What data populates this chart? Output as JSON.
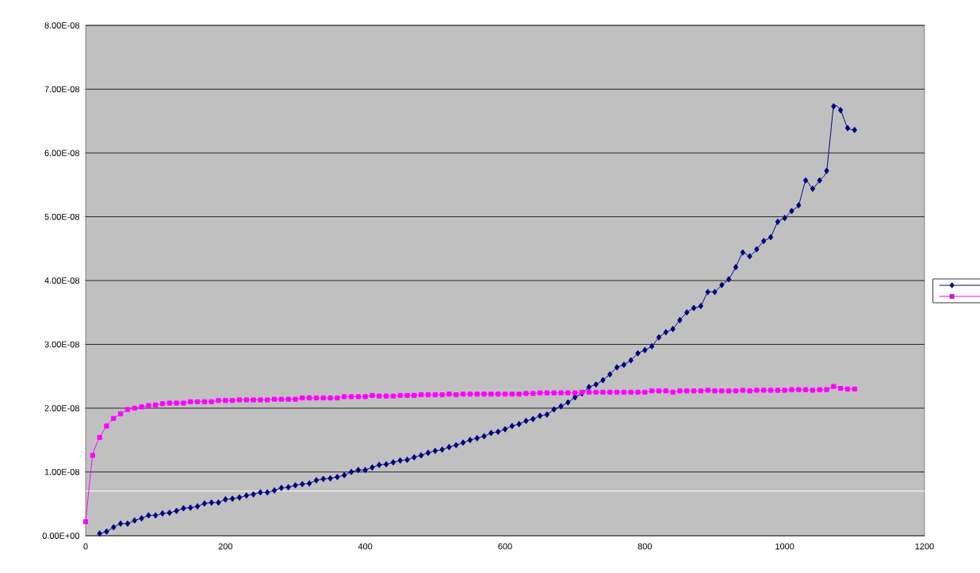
{
  "chart_data": {
    "type": "line",
    "xlim": [
      0,
      1200
    ],
    "ylim": [
      0,
      8e-08
    ],
    "xticks": [
      0,
      200,
      400,
      600,
      800,
      1000,
      1200
    ],
    "yticks": [
      {
        "value": 0,
        "label": "0.00E+00"
      },
      {
        "value": 1e-08,
        "label": "1.00E-08"
      },
      {
        "value": 2e-08,
        "label": "2.00E-08"
      },
      {
        "value": 3e-08,
        "label": "3.00E-08"
      },
      {
        "value": 4e-08,
        "label": "4.00E-08"
      },
      {
        "value": 5e-08,
        "label": "5.00E-08"
      },
      {
        "value": 6e-08,
        "label": "6.00E-08"
      },
      {
        "value": 7e-08,
        "label": "7.00E-08"
      },
      {
        "value": 8e-08,
        "label": "8.00E-08"
      }
    ],
    "grid": "y",
    "line_style": "solid",
    "ref_lines": [
      {
        "axis": "y",
        "value": 7e-09,
        "color": "#ffffff"
      }
    ],
    "series": [
      {
        "color": "#000080",
        "marker": "diamond",
        "x": [
          20,
          30,
          40,
          50,
          60,
          70,
          80,
          90,
          100,
          110,
          120,
          130,
          140,
          150,
          160,
          170,
          180,
          190,
          200,
          210,
          220,
          230,
          240,
          250,
          260,
          270,
          280,
          290,
          300,
          310,
          320,
          330,
          340,
          350,
          360,
          370,
          380,
          390,
          400,
          410,
          420,
          430,
          440,
          450,
          460,
          470,
          480,
          490,
          500,
          510,
          520,
          530,
          540,
          550,
          560,
          570,
          580,
          590,
          600,
          610,
          620,
          630,
          640,
          650,
          660,
          670,
          680,
          690,
          700,
          710,
          720,
          730,
          740,
          750,
          760,
          770,
          780,
          790,
          800,
          810,
          820,
          830,
          840,
          850,
          860,
          870,
          880,
          890,
          900,
          910,
          920,
          930,
          940,
          950,
          960,
          970,
          980,
          990,
          1000,
          1010,
          1020,
          1030,
          1040,
          1050,
          1060,
          1070,
          1080,
          1090,
          1100
        ],
        "values": [
          3.4e-10,
          6.6e-10,
          1.33e-09,
          1.9e-09,
          1.9e-09,
          2.4e-09,
          2.73e-09,
          3.19e-09,
          3.19e-09,
          3.5e-09,
          3.6e-09,
          3.9e-09,
          4.3e-09,
          4.4e-09,
          4.6e-09,
          5.05e-09,
          5.2e-09,
          5.2e-09,
          5.7e-09,
          5.8e-09,
          6e-09,
          6.3e-09,
          6.5e-09,
          6.8e-09,
          6.8e-09,
          7.1e-09,
          7.5e-09,
          7.6e-09,
          7.9e-09,
          8.1e-09,
          8.2e-09,
          8.7e-09,
          8.9e-09,
          9e-09,
          9.2e-09,
          9.5e-09,
          1e-08,
          1.03e-08,
          1.03e-08,
          1.07e-08,
          1.11e-08,
          1.12e-08,
          1.15e-08,
          1.18e-08,
          1.19e-08,
          1.23e-08,
          1.26e-08,
          1.3e-08,
          1.33e-08,
          1.35e-08,
          1.39e-08,
          1.42e-08,
          1.46e-08,
          1.5e-08,
          1.53e-08,
          1.56e-08,
          1.61e-08,
          1.63e-08,
          1.67e-08,
          1.72e-08,
          1.75e-08,
          1.8e-08,
          1.83e-08,
          1.88e-08,
          1.9e-08,
          1.98e-08,
          2.03e-08,
          2.09e-08,
          2.17e-08,
          2.23e-08,
          2.33e-08,
          2.37e-08,
          2.44e-08,
          2.53e-08,
          2.64e-08,
          2.68e-08,
          2.75e-08,
          2.86e-08,
          2.91e-08,
          2.97e-08,
          3.11e-08,
          3.19e-08,
          3.24e-08,
          3.38e-08,
          3.5e-08,
          3.57e-08,
          3.6e-08,
          3.82e-08,
          3.82e-08,
          3.93e-08,
          4.02e-08,
          4.21e-08,
          4.44e-08,
          4.38e-08,
          4.49e-08,
          4.62e-08,
          4.68e-08,
          4.92e-08,
          4.98e-08,
          5.09e-08,
          5.18e-08,
          5.57e-08,
          5.44e-08,
          5.57e-08,
          5.72e-08,
          6.73e-08,
          6.67e-08,
          6.39e-08,
          6.36e-08
        ]
      },
      {
        "color": "#ff00ff",
        "marker": "square",
        "x": [
          0,
          10,
          20,
          30,
          40,
          50,
          60,
          70,
          80,
          90,
          100,
          110,
          120,
          130,
          140,
          150,
          160,
          170,
          180,
          190,
          200,
          210,
          220,
          230,
          240,
          250,
          260,
          270,
          280,
          290,
          300,
          310,
          320,
          330,
          340,
          350,
          360,
          370,
          380,
          390,
          400,
          410,
          420,
          430,
          440,
          450,
          460,
          470,
          480,
          490,
          500,
          510,
          520,
          530,
          540,
          550,
          560,
          570,
          580,
          590,
          600,
          610,
          620,
          630,
          640,
          650,
          660,
          670,
          680,
          690,
          700,
          710,
          720,
          730,
          740,
          750,
          760,
          770,
          780,
          790,
          800,
          810,
          820,
          830,
          840,
          850,
          860,
          870,
          880,
          890,
          900,
          910,
          920,
          930,
          940,
          950,
          960,
          970,
          980,
          990,
          1000,
          1010,
          1020,
          1030,
          1040,
          1050,
          1060,
          1070,
          1080,
          1090,
          1100
        ],
        "values": [
          2.2e-09,
          1.26e-08,
          1.54e-08,
          1.72e-08,
          1.84e-08,
          1.91e-08,
          1.98e-08,
          2e-08,
          2.02e-08,
          2.04e-08,
          2.05e-08,
          2.07e-08,
          2.08e-08,
          2.08e-08,
          2.08e-08,
          2.1e-08,
          2.1e-08,
          2.1e-08,
          2.1e-08,
          2.12e-08,
          2.12e-08,
          2.12e-08,
          2.13e-08,
          2.13e-08,
          2.13e-08,
          2.13e-08,
          2.13e-08,
          2.14e-08,
          2.14e-08,
          2.14e-08,
          2.14e-08,
          2.16e-08,
          2.16e-08,
          2.16e-08,
          2.16e-08,
          2.16e-08,
          2.16e-08,
          2.18e-08,
          2.18e-08,
          2.18e-08,
          2.18e-08,
          2.2e-08,
          2.19e-08,
          2.19e-08,
          2.19e-08,
          2.2e-08,
          2.2e-08,
          2.2e-08,
          2.21e-08,
          2.21e-08,
          2.21e-08,
          2.21e-08,
          2.22e-08,
          2.21e-08,
          2.22e-08,
          2.22e-08,
          2.22e-08,
          2.22e-08,
          2.22e-08,
          2.22e-08,
          2.22e-08,
          2.22e-08,
          2.22e-08,
          2.23e-08,
          2.23e-08,
          2.24e-08,
          2.24e-08,
          2.24e-08,
          2.24e-08,
          2.24e-08,
          2.24e-08,
          2.25e-08,
          2.25e-08,
          2.25e-08,
          2.25e-08,
          2.25e-08,
          2.25e-08,
          2.25e-08,
          2.25e-08,
          2.25e-08,
          2.25e-08,
          2.27e-08,
          2.27e-08,
          2.27e-08,
          2.25e-08,
          2.27e-08,
          2.27e-08,
          2.27e-08,
          2.27e-08,
          2.28e-08,
          2.27e-08,
          2.27e-08,
          2.27e-08,
          2.27e-08,
          2.28e-08,
          2.27e-08,
          2.28e-08,
          2.28e-08,
          2.28e-08,
          2.28e-08,
          2.28e-08,
          2.29e-08,
          2.29e-08,
          2.29e-08,
          2.28e-08,
          2.29e-08,
          2.29e-08,
          2.34e-08,
          2.31e-08,
          2.3e-08,
          2.3e-08
        ]
      }
    ]
  }
}
